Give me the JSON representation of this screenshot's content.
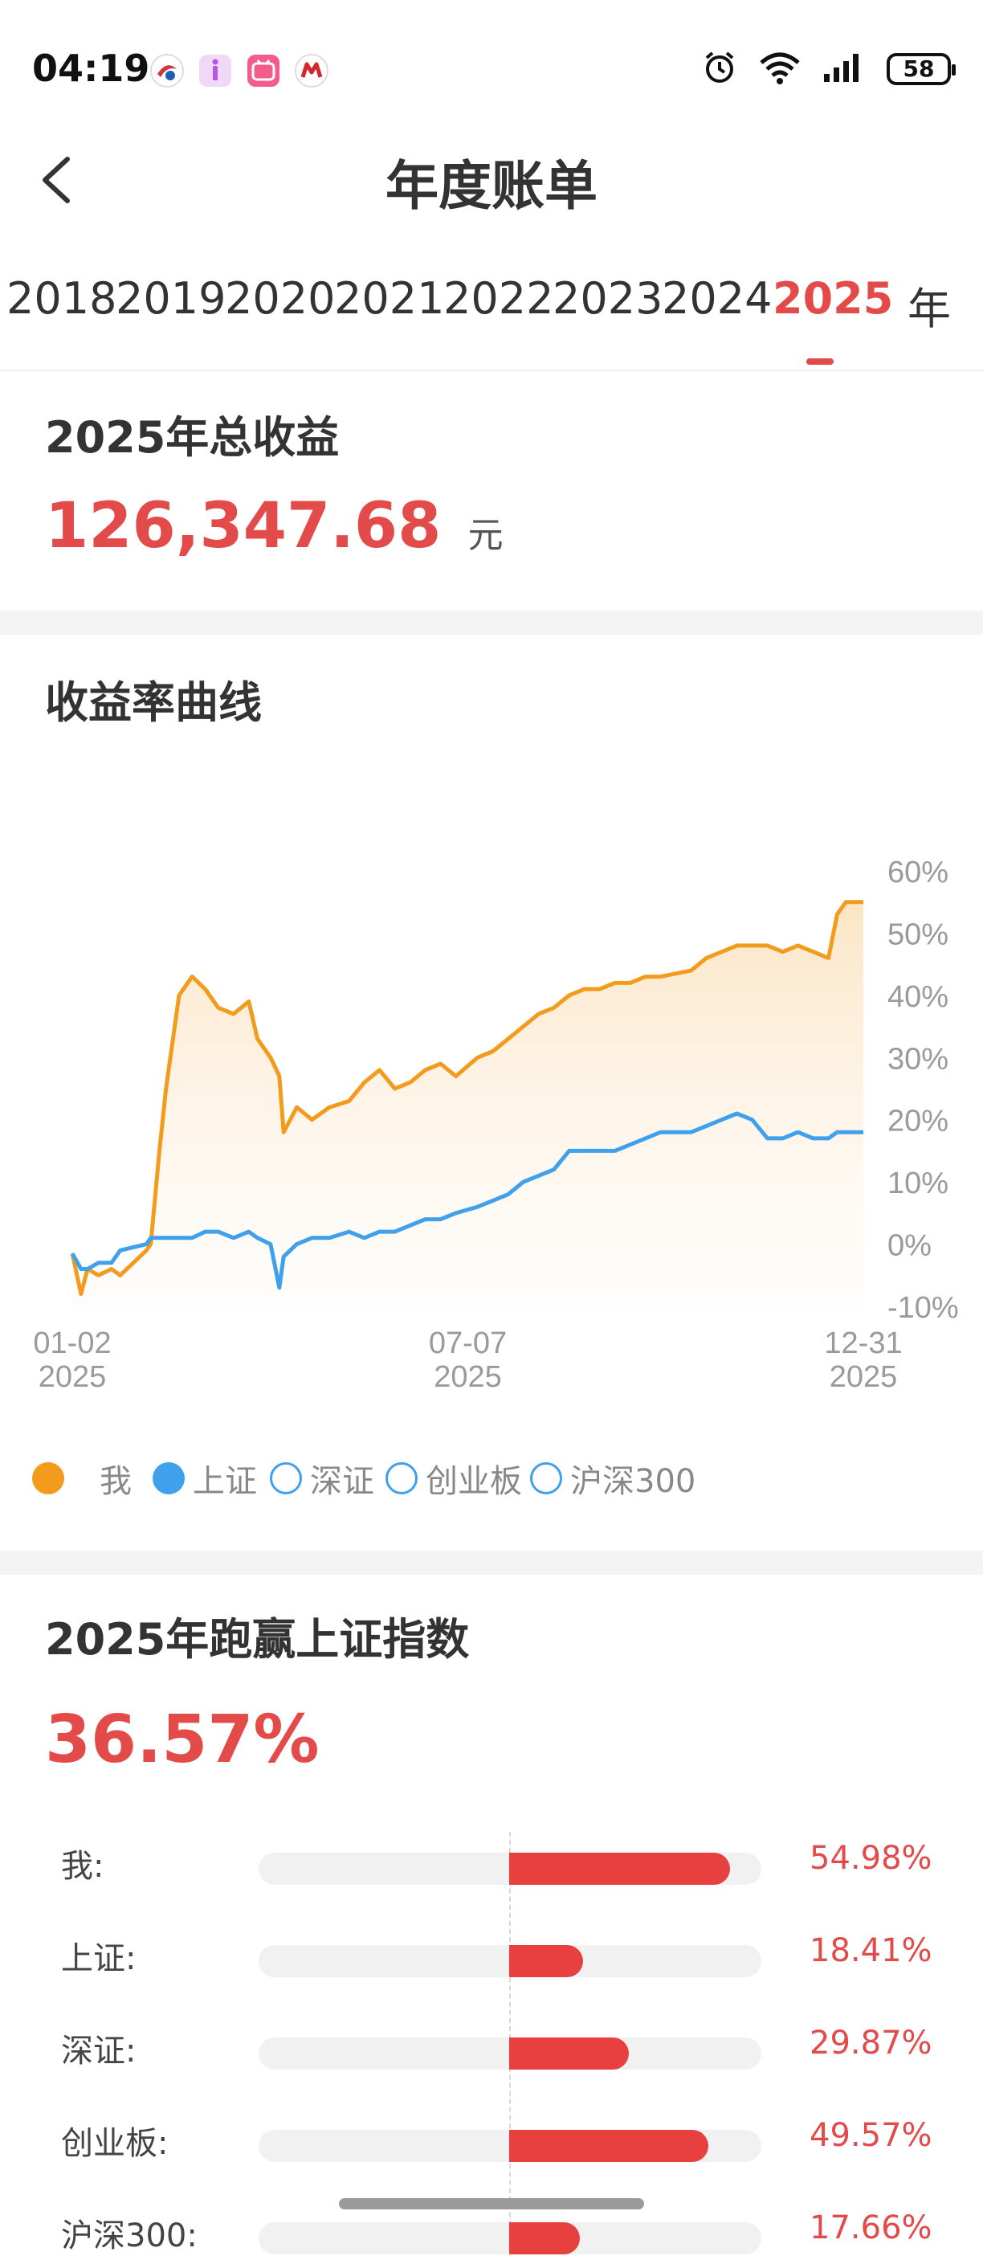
{
  "status_bar": {
    "time": "04:19",
    "battery": "58",
    "icons": [
      "csdc-app-icon",
      "ifind-app-icon",
      "bilibili-app-icon",
      "cmb-app-icon",
      "alarm-icon",
      "wifi-icon",
      "signal-icon",
      "battery-icon"
    ]
  },
  "header": {
    "title": "年度账单",
    "back_icon": "chevron-left-icon"
  },
  "year_tabs": [
    "2018",
    "2019",
    "2020",
    "2021",
    "2022",
    "2023",
    "2024",
    "2025",
    "年"
  ],
  "active_year": "2025",
  "total_profit": {
    "title": "2025年总收益",
    "amount": "126,347.68",
    "unit": "元"
  },
  "return_curve": {
    "title": "收益率曲线",
    "legend": [
      {
        "label": "我",
        "color": "#f29b1d",
        "filled": true
      },
      {
        "label": "上证",
        "color": "#3fa0ec",
        "filled": true
      },
      {
        "label": "深证",
        "color": "#3fa0ec",
        "filled": false
      },
      {
        "label": "创业板",
        "color": "#3fa0ec",
        "filled": false
      },
      {
        "label": "沪深300",
        "color": "#3fa0ec",
        "filled": false
      }
    ]
  },
  "chart_data": {
    "type": "line",
    "x_ticks": [
      {
        "date": "01-02",
        "year": "2025"
      },
      {
        "date": "07-07",
        "year": "2025"
      },
      {
        "date": "12-31",
        "year": "2025"
      }
    ],
    "y_ticks": [
      "60%",
      "50%",
      "40%",
      "30%",
      "20%",
      "10%",
      "0%",
      "-10%"
    ],
    "ylim": [
      -10,
      60
    ],
    "x_dates": [
      "2025-01-02",
      "2025-01-06",
      "2025-01-09",
      "2025-01-14",
      "2025-01-20",
      "2025-01-24",
      "2025-02-05",
      "2025-02-07",
      "2025-02-11",
      "2025-02-14",
      "2025-02-20",
      "2025-02-26",
      "2025-03-04",
      "2025-03-10",
      "2025-03-17",
      "2025-03-24",
      "2025-03-28",
      "2025-04-03",
      "2025-04-07",
      "2025-04-09",
      "2025-04-15",
      "2025-04-22",
      "2025-04-30",
      "2025-05-09",
      "2025-05-16",
      "2025-05-23",
      "2025-05-30",
      "2025-06-06",
      "2025-06-13",
      "2025-06-20",
      "2025-06-27",
      "2025-07-07",
      "2025-07-14",
      "2025-07-21",
      "2025-07-28",
      "2025-08-04",
      "2025-08-11",
      "2025-08-18",
      "2025-08-25",
      "2025-09-01",
      "2025-09-08",
      "2025-09-15",
      "2025-09-22",
      "2025-09-29",
      "2025-10-13",
      "2025-10-20",
      "2025-10-27",
      "2025-11-03",
      "2025-11-10",
      "2025-11-17",
      "2025-11-24",
      "2025-12-01",
      "2025-12-08",
      "2025-12-15",
      "2025-12-19",
      "2025-12-23",
      "2025-12-31"
    ],
    "series": [
      {
        "name": "我",
        "color": "#f29b1d",
        "values": [
          -1.5,
          -8,
          -4,
          -5,
          -4,
          -5,
          -1,
          0,
          15,
          25,
          40,
          43,
          41,
          38,
          37,
          39,
          33,
          30,
          27,
          18,
          22,
          20,
          22,
          23,
          26,
          28,
          25,
          26,
          28,
          29,
          27,
          30,
          31,
          33,
          35,
          37,
          38,
          40,
          41,
          41,
          42,
          42,
          43,
          43,
          44,
          46,
          47,
          48,
          48,
          48,
          47,
          48,
          47,
          46,
          53,
          55,
          55
        ]
      },
      {
        "name": "上证",
        "color": "#3fa0ec",
        "values": [
          -1.5,
          -4,
          -4,
          -3,
          -3,
          -1,
          0,
          1,
          1,
          1,
          1,
          1,
          2,
          2,
          1,
          2,
          1,
          0,
          -7,
          -2,
          0,
          1,
          1,
          2,
          1,
          2,
          2,
          3,
          4,
          4,
          5,
          6,
          7,
          8,
          10,
          11,
          12,
          15,
          15,
          15,
          15,
          16,
          17,
          18,
          18,
          19,
          20,
          21,
          20,
          17,
          17,
          18,
          17,
          17,
          18,
          18,
          18
        ]
      }
    ]
  },
  "beat_index": {
    "title": "2025年跑赢上证指数",
    "value": "36.57%",
    "rows": [
      {
        "label": "我:",
        "value": "54.98%",
        "pct": 54.98
      },
      {
        "label": "上证:",
        "value": "18.41%",
        "pct": 18.41
      },
      {
        "label": "深证:",
        "value": "29.87%",
        "pct": 29.87
      },
      {
        "label": "创业板:",
        "value": "49.57%",
        "pct": 49.57
      },
      {
        "label": "沪深300:",
        "value": "17.66%",
        "pct": 17.66
      }
    ]
  }
}
